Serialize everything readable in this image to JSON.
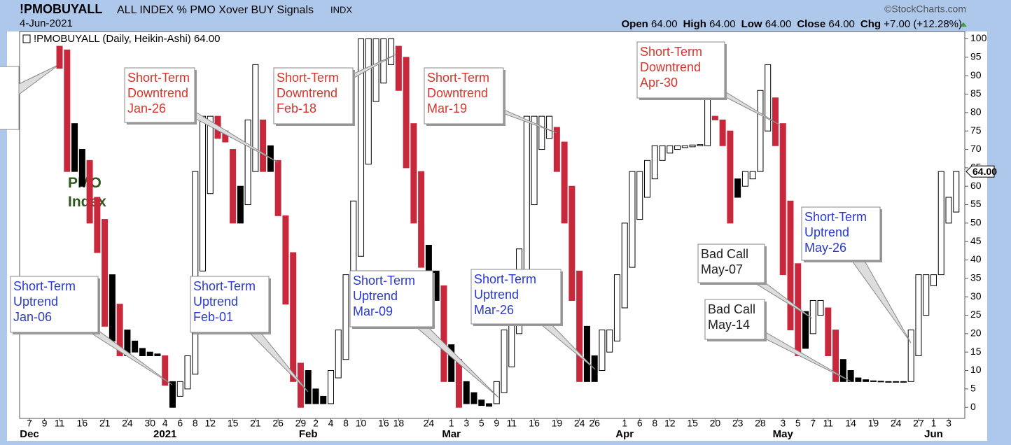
{
  "chart_data": {
    "type": "candlestick",
    "symbol": "!PMOBUYALL",
    "title": "ALL INDEX % PMO Xover BUY Signals",
    "exchange": "INDX",
    "source": "©StockCharts.com",
    "date": "4-Jun-2021",
    "quote": [
      {
        "label": "Open",
        "text": "64.00"
      },
      {
        "label": "High",
        "text": "64.00"
      },
      {
        "label": "Low",
        "text": "64.00"
      },
      {
        "label": "Close",
        "text": "64.00"
      },
      {
        "label": "Chg",
        "text": "+7.00 (+12.28%)"
      }
    ],
    "legend": "!PMOBUYALL (Daily, Heikin-Ashi) 64.00",
    "series_label": "PMO Index",
    "last_value": {
      "value": 64,
      "label": "64.00"
    },
    "categories": [
      "7",
      null,
      "9",
      null,
      "11",
      null,
      null,
      "16",
      null,
      null,
      "21",
      null,
      null,
      "24",
      null,
      null,
      "30",
      null,
      "4",
      null,
      "6",
      null,
      "8",
      null,
      "12",
      null,
      null,
      "15",
      null,
      null,
      "21",
      null,
      null,
      "26",
      null,
      null,
      "29",
      null,
      "2",
      null,
      "4",
      null,
      "8",
      null,
      "10",
      null,
      null,
      "16",
      null,
      "18",
      null,
      null,
      null,
      "24",
      null,
      null,
      "1",
      null,
      "3",
      null,
      "5",
      null,
      "9",
      null,
      "11",
      null,
      null,
      "16",
      null,
      null,
      "19",
      null,
      null,
      "24",
      null,
      "26",
      null,
      null,
      null,
      "1",
      null,
      "6",
      null,
      "8",
      null,
      "12",
      null,
      null,
      "15",
      null,
      null,
      "20",
      null,
      null,
      "23",
      null,
      null,
      "28",
      null,
      null,
      "3",
      null,
      "5",
      null,
      "7",
      null,
      "11",
      null,
      null,
      "14",
      null,
      null,
      "19",
      null,
      null,
      "24",
      null,
      null,
      "27",
      null,
      "1",
      null,
      "3",
      null
    ],
    "month_labels": [
      "Dec",
      null,
      null,
      null,
      null,
      null,
      null,
      null,
      null,
      null,
      null,
      null,
      null,
      null,
      null,
      null,
      null,
      null,
      "2021",
      null,
      null,
      null,
      null,
      null,
      null,
      null,
      null,
      null,
      null,
      null,
      null,
      null,
      null,
      null,
      null,
      null,
      null,
      "Feb",
      null,
      null,
      null,
      null,
      null,
      null,
      null,
      null,
      null,
      null,
      null,
      null,
      null,
      null,
      null,
      null,
      null,
      null,
      "Mar",
      null,
      null,
      null,
      null,
      null,
      null,
      null,
      null,
      null,
      null,
      null,
      null,
      null,
      null,
      null,
      null,
      null,
      null,
      null,
      null,
      null,
      null,
      "Apr",
      null,
      null,
      null,
      null,
      null,
      null,
      null,
      null,
      null,
      null,
      null,
      null,
      null,
      null,
      null,
      null,
      null,
      null,
      null,
      null,
      "May",
      null,
      null,
      null,
      null,
      null,
      null,
      null,
      null,
      null,
      null,
      null,
      null,
      null,
      null,
      null,
      null,
      null,
      null,
      null,
      "Jun",
      null,
      null,
      null
    ],
    "open": [
      null,
      null,
      null,
      null,
      98,
      97,
      77,
      70,
      67,
      57,
      51,
      36,
      28,
      21,
      18,
      16,
      15,
      14.5,
      14,
      7,
      3,
      5,
      9,
      37,
      58,
      79,
      75,
      70,
      60,
      55,
      64,
      78,
      71,
      67,
      52,
      42,
      12,
      10,
      5,
      3,
      1,
      8,
      13,
      23,
      41,
      66,
      83,
      88,
      93,
      98,
      95,
      77,
      64,
      44,
      37,
      33,
      17,
      13,
      7,
      4,
      2,
      1,
      1,
      4,
      11,
      20,
      36,
      55,
      70,
      73,
      76,
      72,
      60,
      37,
      22,
      14,
      10,
      15,
      18,
      27,
      38,
      51,
      57,
      62,
      67,
      69,
      70,
      70.5,
      70.7,
      71,
      71,
      79,
      78,
      75,
      62,
      60,
      62,
      64,
      75,
      84,
      77,
      56,
      39,
      26,
      20,
      25,
      27,
      21,
      13,
      10,
      8,
      7.5,
      7.2,
      7.1,
      7,
      7,
      7,
      7,
      14,
      25,
      33,
      36,
      57,
      53
    ],
    "close": [
      null,
      null,
      null,
      null,
      92,
      64,
      64,
      60,
      50,
      42,
      22,
      18,
      14,
      14,
      15,
      14,
      14,
      14,
      6,
      0,
      7,
      14,
      64,
      79,
      79,
      73,
      72,
      50,
      50,
      78,
      93,
      64,
      64,
      52,
      28,
      7,
      0,
      1,
      1,
      1,
      10,
      21,
      36,
      56,
      100,
      100,
      100,
      100,
      100,
      86,
      65,
      50,
      38,
      37,
      29,
      7,
      7,
      0,
      1,
      1,
      0.5,
      0.3,
      7,
      21,
      31,
      43,
      79,
      79,
      79,
      79,
      64,
      50,
      29,
      7,
      7,
      7,
      21,
      21,
      36,
      50,
      64,
      64,
      67,
      71,
      71,
      71,
      71,
      71,
      71.2,
      71.3,
      86,
      78,
      71,
      50,
      57,
      64,
      64,
      86,
      93,
      71,
      36,
      21,
      14,
      16,
      29,
      29,
      14,
      7,
      7,
      7,
      7,
      7,
      7,
      7,
      7,
      7,
      7,
      21,
      36,
      36,
      36,
      64,
      50,
      64
    ],
    "colors": [
      null,
      null,
      null,
      null,
      "#c8283c",
      "#c8283c",
      "#000000",
      "#000000",
      "#c8283c",
      "#c8283c",
      "#c8283c",
      "#000000",
      "#c8283c",
      "#000000",
      "#000000",
      "#000000",
      "#000000",
      "#000000",
      "#c8283c",
      "#000000",
      "#ffffff",
      "#ffffff",
      "#ffffff",
      "#ffffff",
      "#ffffff",
      "#c8283c",
      "#c8283c",
      "#c8283c",
      "#000000",
      "#ffffff",
      "#ffffff",
      "#c8283c",
      "#000000",
      "#c8283c",
      "#c8283c",
      "#c8283c",
      "#c8283c",
      "#000000",
      "#000000",
      "#000000",
      "#ffffff",
      "#ffffff",
      "#ffffff",
      "#ffffff",
      "#ffffff",
      "#ffffff",
      "#ffffff",
      "#ffffff",
      "#ffffff",
      "#c8283c",
      "#c8283c",
      "#c8283c",
      "#c8283c",
      "#000000",
      "#000000",
      "#c8283c",
      "#000000",
      "#c8283c",
      "#000000",
      "#000000",
      "#000000",
      "#000000",
      "#ffffff",
      "#ffffff",
      "#ffffff",
      "#ffffff",
      "#ffffff",
      "#ffffff",
      "#ffffff",
      "#ffffff",
      "#c8283c",
      "#c8283c",
      "#c8283c",
      "#c8283c",
      "#000000",
      "#000000",
      "#ffffff",
      "#ffffff",
      "#ffffff",
      "#ffffff",
      "#ffffff",
      "#ffffff",
      "#ffffff",
      "#ffffff",
      "#ffffff",
      "#ffffff",
      "#ffffff",
      "#ffffff",
      "#ffffff",
      "#ffffff",
      "#ffffff",
      "#c8283c",
      "#c8283c",
      "#c8283c",
      "#000000",
      "#ffffff",
      "#ffffff",
      "#ffffff",
      "#ffffff",
      "#c8283c",
      "#c8283c",
      "#c8283c",
      "#c8283c",
      "#000000",
      "#ffffff",
      "#ffffff",
      "#c8283c",
      "#c8283c",
      "#000000",
      "#000000",
      "#000000",
      "#000000",
      "#000000",
      "#000000",
      "#000000",
      "#000000",
      "#000000",
      "#ffffff",
      "#ffffff",
      "#ffffff",
      "#ffffff",
      "#ffffff",
      "#ffffff",
      "#ffffff"
    ],
    "ylim": [
      -3,
      102
    ],
    "yticks": [
      0,
      5,
      10,
      15,
      20,
      25,
      30,
      35,
      40,
      45,
      50,
      55,
      60,
      65,
      70,
      75,
      80,
      85,
      90,
      95,
      100
    ],
    "grid": false,
    "annotations": [
      {
        "lines": [
          "Short-Term",
          "Downtrend",
          "Jan-26"
        ],
        "color": "#d8352a"
      },
      {
        "lines": [
          "Short-Term",
          "Downtrend",
          "Feb-18"
        ],
        "color": "#d8352a"
      },
      {
        "lines": [
          "Short-Term",
          "Downtrend",
          "Mar-19"
        ],
        "color": "#d8352a"
      },
      {
        "lines": [
          "Short-Term",
          "Downtrend",
          "Apr-30"
        ],
        "color": "#d8352a"
      },
      {
        "lines": [
          "Short-Term",
          "Uptrend",
          "Jan-06"
        ],
        "color": "#2a3ad0"
      },
      {
        "lines": [
          "Short-Term",
          "Uptrend",
          "Feb-01"
        ],
        "color": "#2a3ad0"
      },
      {
        "lines": [
          "Short-Term",
          "Uptrend",
          "Mar-09"
        ],
        "color": "#2a3ad0"
      },
      {
        "lines": [
          "Short-Term",
          "Uptrend",
          "Mar-26"
        ],
        "color": "#2a3ad0"
      },
      {
        "lines": [
          "Short-Term",
          "Uptrend",
          "May-26"
        ],
        "color": "#2a3ad0"
      },
      {
        "lines": [
          "Bad Call",
          "May-07"
        ],
        "color": "#222222"
      },
      {
        "lines": [
          "Bad Call",
          "May-14"
        ],
        "color": "#222222"
      }
    ]
  }
}
